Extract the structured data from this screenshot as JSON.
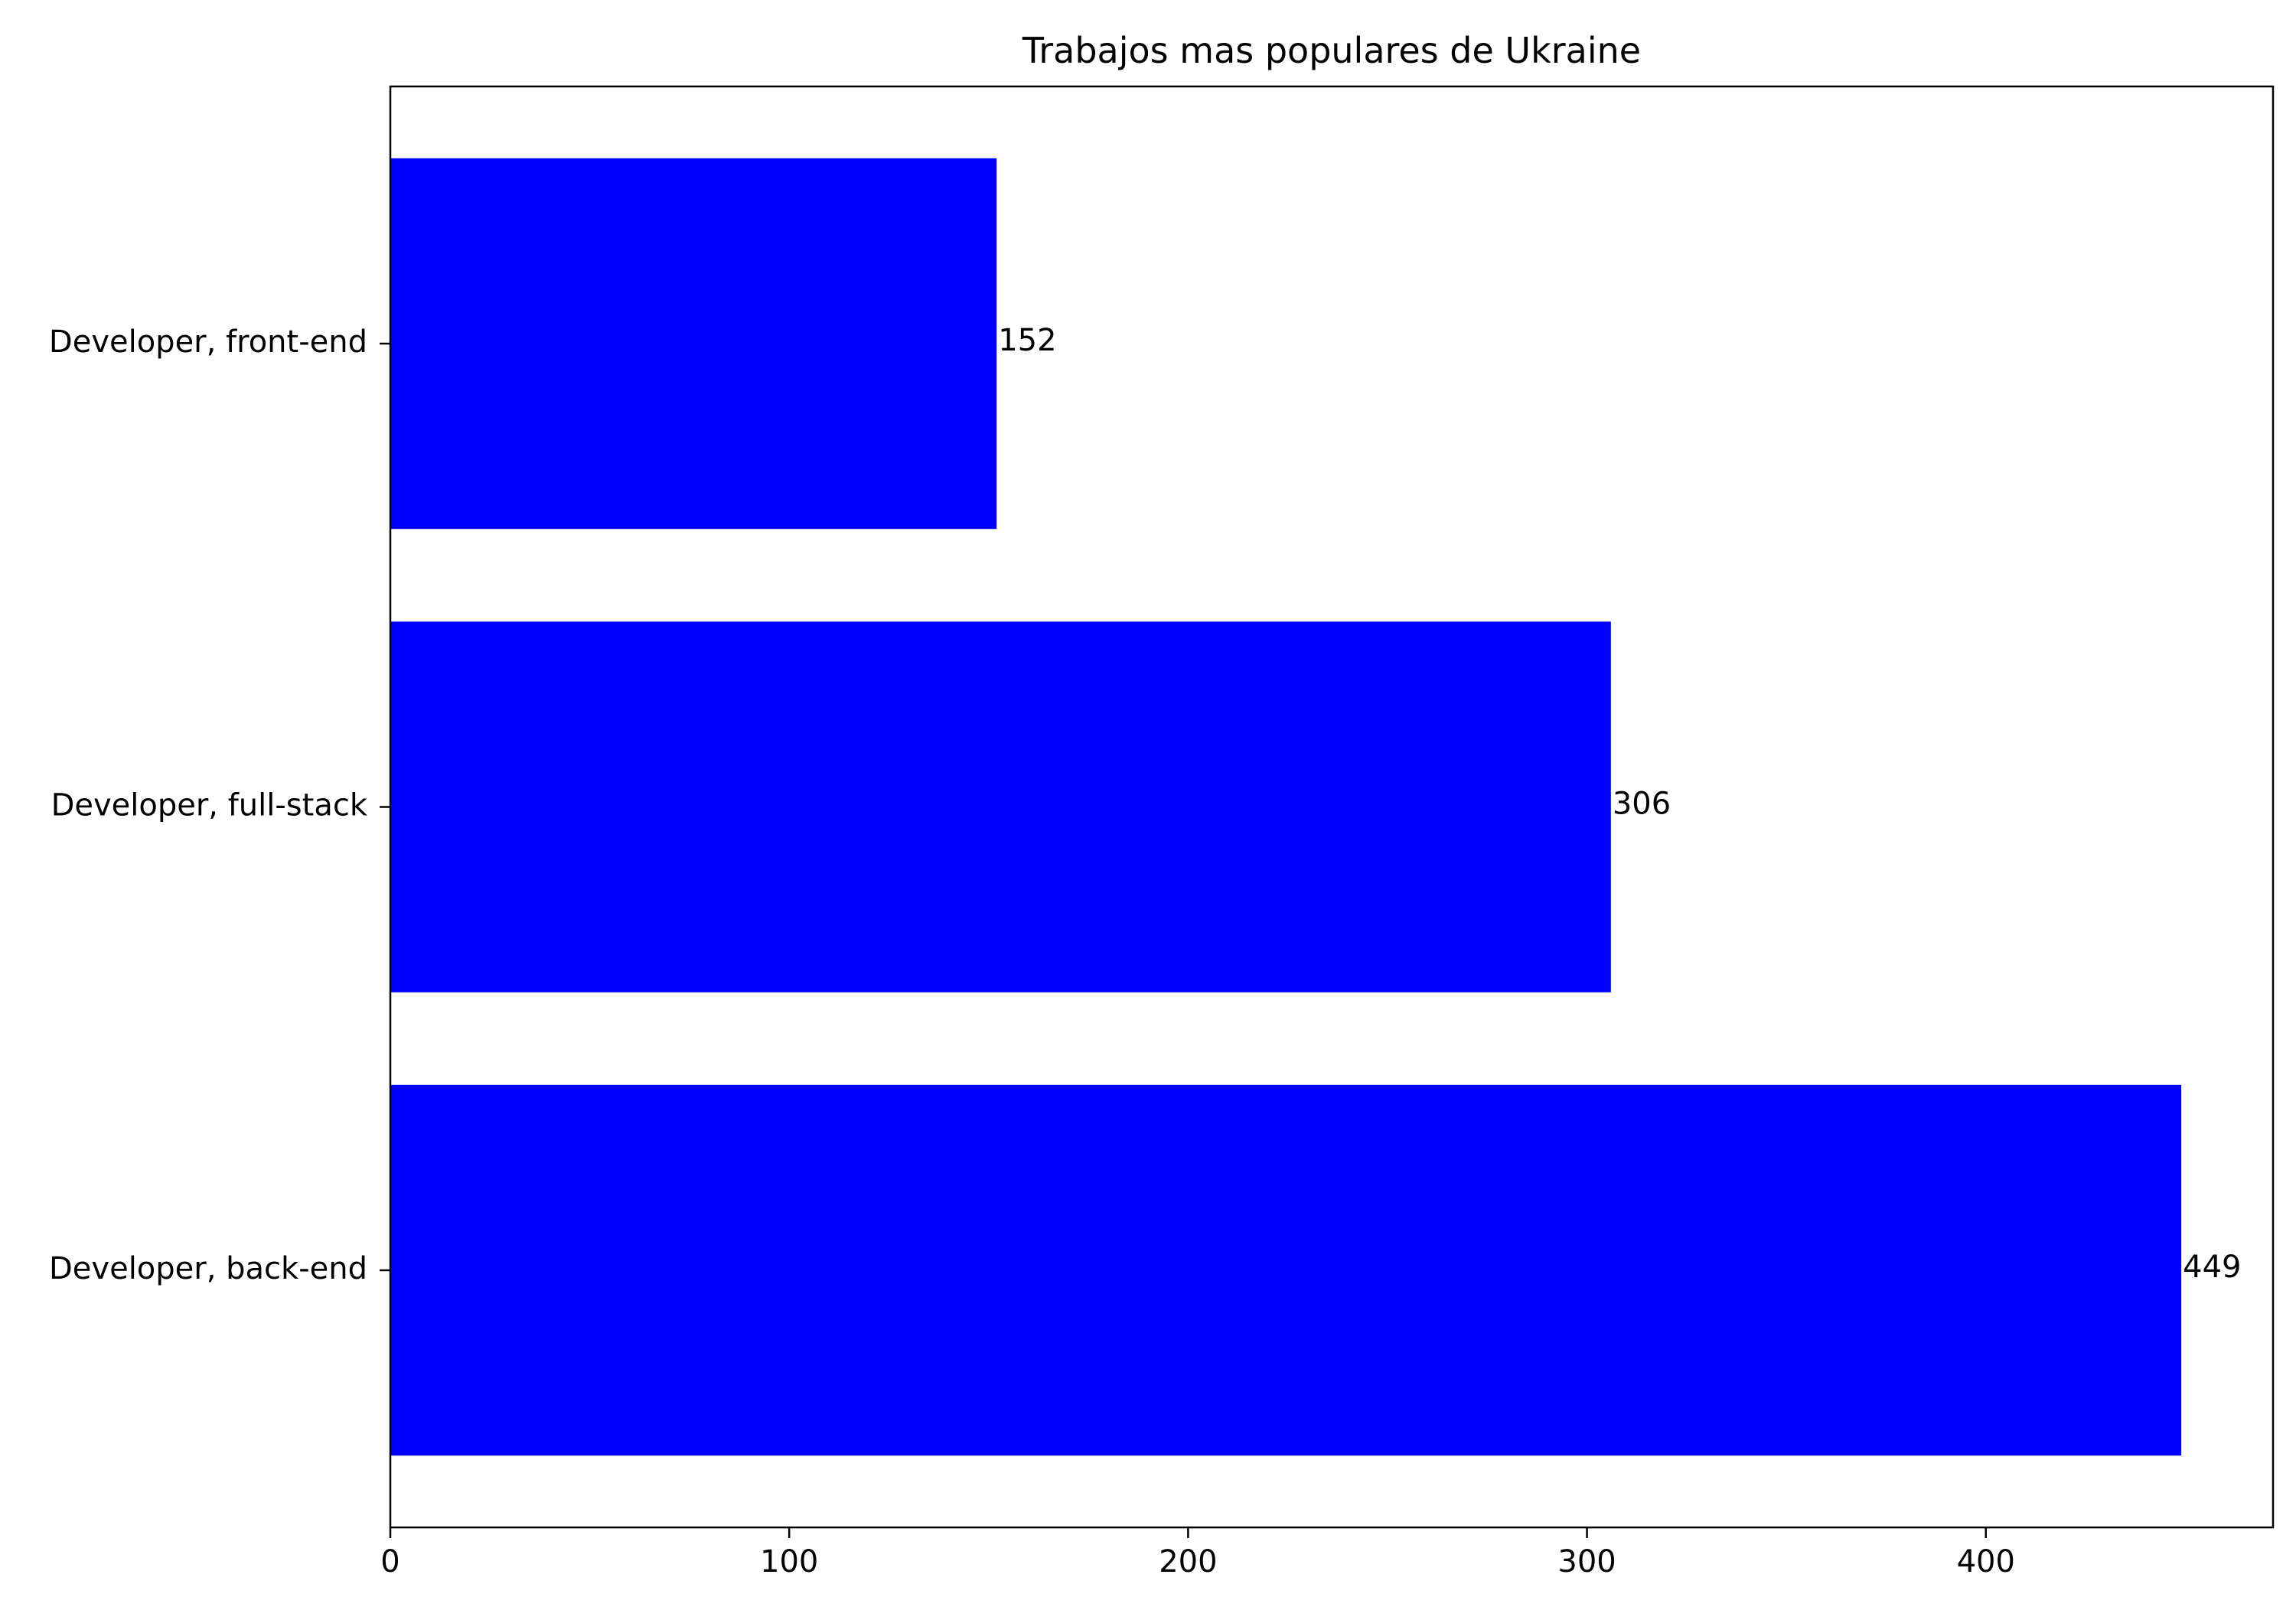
{
  "chart_data": {
    "type": "bar",
    "orientation": "horizontal",
    "title": "Trabajos mas populares de Ukraine",
    "xlabel": "",
    "ylabel": "",
    "categories": [
      "Developer, back-end",
      "Developer, full-stack",
      "Developer, front-end"
    ],
    "values": [
      449,
      306,
      152
    ],
    "data_labels": [
      "449",
      "306",
      "152"
    ],
    "xlim": [
      0,
      472
    ],
    "x_ticks": [
      0,
      100,
      200,
      300,
      400
    ],
    "x_tick_labels": [
      "0",
      "100",
      "200",
      "300",
      "400"
    ],
    "bar_color": "#0000ff",
    "grid": false,
    "legend": "none"
  }
}
